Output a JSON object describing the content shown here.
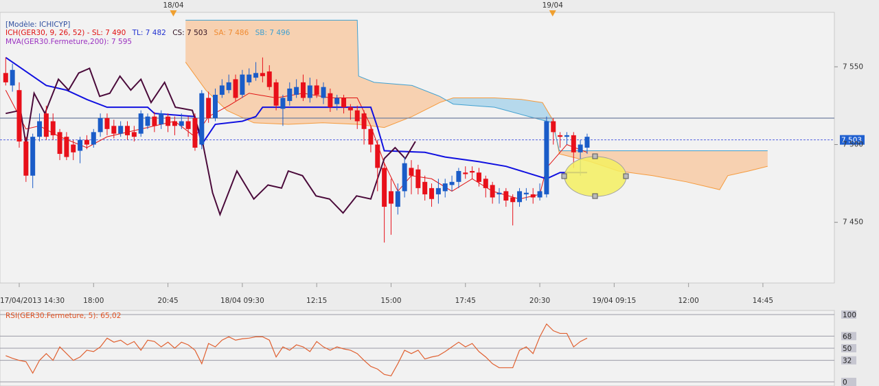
{
  "chart_data": [
    {
      "type": "candlestick",
      "legend": {
        "model": "[Modèle: ICHICYP]",
        "ich": "ICH(GER30, 9, 26, 52) -  SL: 7 490",
        "tl": "TL: 7 482",
        "cs": "CS: 7 503",
        "sa": "SA: 7 486",
        "sb": "SB: 7 496",
        "mva": "MVA(GER30.Fermeture,200): 7 595"
      },
      "categories": [
        null,
        null,
        "17/04/2013 14:30",
        null,
        null,
        null,
        null,
        null,
        null,
        null,
        null,
        null,
        null,
        "18:00",
        null,
        null,
        null,
        null,
        null,
        null,
        null,
        null,
        null,
        null,
        "20:45",
        null,
        null,
        null,
        null,
        null,
        null,
        null,
        null,
        null,
        null,
        "18/04 09:30",
        null,
        null,
        null,
        null,
        null,
        null,
        null,
        null,
        null,
        null,
        "12:15",
        null,
        null,
        null,
        null,
        null,
        null,
        null,
        null,
        null,
        null,
        "15:00",
        null,
        null,
        null,
        null,
        null,
        null,
        null,
        null,
        null,
        null,
        "17:45",
        null,
        null,
        null,
        null,
        null,
        null,
        null,
        null,
        null,
        null,
        "20:30",
        null,
        null,
        null,
        null,
        null,
        null,
        null,
        null,
        null,
        null,
        "19/04 09:15",
        null,
        null,
        null,
        null,
        null,
        null,
        null,
        null,
        null,
        null,
        "12:00",
        null,
        null,
        null,
        null,
        null,
        null,
        null,
        null,
        null,
        null,
        "14:45",
        null
      ],
      "open": [
        7546,
        7538,
        7535,
        7502,
        7480,
        7505,
        7520,
        7515,
        7508,
        7505,
        7500,
        7496,
        7503,
        7500,
        7508,
        7517,
        7512,
        7507,
        7512,
        7508,
        7507,
        7512,
        7518,
        7513,
        7518,
        7515,
        7512,
        7515,
        7517,
        7500,
        7530,
        7517,
        7532,
        7535,
        7542,
        7532,
        7540,
        7543,
        7546,
        7547,
        7540,
        7523,
        7528,
        7532,
        7540,
        7530,
        7538,
        7530,
        7533,
        7526,
        7530,
        7524,
        7522,
        7520,
        7510,
        7500,
        7485,
        7470,
        7460,
        7470,
        7485,
        7484,
        7476,
        7472,
        7468,
        7470,
        7474,
        7476,
        7482,
        7483,
        7482,
        7478,
        7474,
        7468,
        7470,
        7466,
        7463,
        7468,
        7468,
        7466,
        7468,
        7515,
        7506,
        7505,
        7506,
        7495,
        7498,
        null,
        null,
        null,
        null,
        null,
        null,
        null,
        null,
        null,
        null,
        null,
        null,
        null,
        null,
        null,
        null,
        null,
        null,
        null,
        null,
        null,
        null,
        null,
        null,
        null,
        null,
        null
      ],
      "high": [
        7556,
        7552,
        7540,
        7505,
        7507,
        7520,
        7525,
        7520,
        7510,
        7508,
        7503,
        7505,
        7506,
        7510,
        7520,
        7520,
        7516,
        7515,
        7515,
        7512,
        7522,
        7520,
        7521,
        7522,
        7520,
        7518,
        7520,
        7518,
        7520,
        7535,
        7534,
        7536,
        7542,
        7545,
        7545,
        7548,
        7549,
        7553,
        7556,
        7551,
        7542,
        7532,
        7540,
        7542,
        7545,
        7543,
        7542,
        7540,
        7536,
        7532,
        7532,
        7526,
        7525,
        7522,
        7512,
        7503,
        7488,
        7478,
        7475,
        7492,
        7490,
        7487,
        7480,
        7475,
        7478,
        7478,
        7480,
        7485,
        7486,
        7486,
        7485,
        7480,
        7476,
        7472,
        7472,
        7468,
        7472,
        7472,
        7472,
        7475,
        7518,
        7517,
        7508,
        7508,
        7508,
        7503,
        7507,
        null,
        null,
        null,
        null,
        null,
        null,
        null,
        null,
        null,
        null,
        null,
        null,
        null,
        null,
        null,
        null,
        null,
        null,
        null,
        null,
        null,
        null,
        null,
        null,
        null,
        null,
        null
      ],
      "low": [
        7538,
        7534,
        7498,
        7476,
        7472,
        7502,
        7503,
        7503,
        7490,
        7490,
        7490,
        7488,
        7497,
        7498,
        7505,
        7506,
        7504,
        7505,
        7503,
        7502,
        7505,
        7510,
        7508,
        7510,
        7508,
        7506,
        7510,
        7505,
        7496,
        7497,
        7514,
        7515,
        7530,
        7533,
        7528,
        7530,
        7538,
        7541,
        7540,
        7535,
        7522,
        7512,
        7525,
        7530,
        7528,
        7527,
        7530,
        7526,
        7521,
        7522,
        7520,
        7516,
        7510,
        7500,
        7495,
        7470,
        7437,
        7442,
        7455,
        7466,
        7468,
        7468,
        7464,
        7460,
        7462,
        7466,
        7470,
        7472,
        7478,
        7478,
        7473,
        7466,
        7462,
        7462,
        7460,
        7448,
        7460,
        7464,
        7462,
        7464,
        7466,
        7500,
        7498,
        7500,
        7485,
        7480,
        7494,
        null,
        null,
        null,
        null,
        null,
        null,
        null,
        null,
        null,
        null,
        null,
        null,
        null,
        null,
        null,
        null,
        null,
        null,
        null,
        null,
        null,
        null,
        null,
        null,
        null,
        null,
        null
      ],
      "close": [
        7540,
        7548,
        7502,
        7480,
        7505,
        7515,
        7505,
        7506,
        7494,
        7492,
        7495,
        7503,
        7500,
        7508,
        7517,
        7510,
        7507,
        7512,
        7506,
        7505,
        7520,
        7518,
        7512,
        7520,
        7512,
        7512,
        7515,
        7510,
        7498,
        7533,
        7517,
        7532,
        7538,
        7540,
        7530,
        7545,
        7545,
        7546,
        7544,
        7537,
        7525,
        7530,
        7536,
        7537,
        7530,
        7538,
        7532,
        7537,
        7524,
        7530,
        7524,
        7522,
        7515,
        7510,
        7500,
        7485,
        7460,
        7462,
        7470,
        7488,
        7480,
        7472,
        7468,
        7465,
        7472,
        7475,
        7476,
        7483,
        7481,
        7482,
        7476,
        7472,
        7466,
        7469,
        7464,
        7463,
        7470,
        7469,
        7466,
        7470,
        7515,
        7508,
        7505,
        7506,
        7495,
        7500,
        7505,
        null,
        null,
        null,
        null,
        null,
        null,
        null,
        null,
        null,
        null,
        null,
        null,
        null,
        null,
        null,
        null,
        null,
        null,
        null,
        null,
        null,
        null,
        null,
        null,
        null,
        null,
        null
      ],
      "up_color": "#1a5cc8",
      "down_color": "#e8101a",
      "ylim": [
        7411,
        7585
      ],
      "yticks": [
        {
          "value": 7450,
          "label": "7 450"
        },
        {
          "value": 7500,
          "label": "7 500"
        },
        {
          "value": 7550,
          "label": "7 550"
        }
      ],
      "cloud": {
        "bear_color": "#f8c8a0",
        "bull_color": "#a6d2ea"
      },
      "senkou_a": {
        "color": "#f59a3c",
        "x": [
          26.6,
          29.6,
          32.7,
          36.7,
          41.8,
          46.9,
          52.0,
          56.0,
          60.1,
          64.2,
          66.2,
          72.3,
          76.3,
          79.4,
          80.9,
          81.9,
          86.5,
          90.6,
          95.7,
          100.7,
          105.6,
          106.8,
          109.9,
          112.7
        ],
        "values": [
          7553,
          7535,
          7522,
          7514,
          7513,
          7514,
          7513,
          7511,
          7518,
          7527,
          7530,
          7530,
          7529,
          7527,
          7516,
          7494,
          7489,
          7483,
          7480,
          7476,
          7471,
          7480,
          7483,
          7486
        ]
      },
      "senkou_b": {
        "color": "#40a0d0",
        "x": [
          26.6,
          52.0,
          52.2,
          54.5,
          60.1,
          64.2,
          66.2,
          72.3,
          77.4,
          80.9,
          81.9,
          112.7
        ],
        "values": [
          7580,
          7580,
          7544,
          7540,
          7538,
          7531,
          7526,
          7524,
          7518,
          7514,
          7496,
          7496
        ]
      },
      "lines": [
        {
          "color": "#e01010",
          "width": 1,
          "x": [
            0,
            3,
            5,
            8,
            12,
            15,
            20,
            25,
            28,
            30,
            33,
            36,
            40,
            44,
            48,
            52,
            54,
            56,
            58,
            60,
            63,
            66,
            69,
            72,
            76,
            79,
            80,
            83,
            86
          ],
          "values": [
            7535,
            7510,
            7512,
            7505,
            7498,
            7505,
            7510,
            7515,
            7505,
            7518,
            7525,
            7533,
            7530,
            7533,
            7530,
            7530,
            7512,
            7488,
            7470,
            7480,
            7478,
            7470,
            7478,
            7470,
            7465,
            7468,
            7485,
            7500,
            7495
          ]
        },
        {
          "color": "#1010e0",
          "width": 2,
          "x": [
            0,
            6,
            9,
            12,
            15,
            21,
            22,
            28,
            29,
            31,
            35,
            37,
            38,
            54,
            55,
            56,
            62,
            65,
            70,
            74,
            80,
            82,
            86
          ],
          "values": [
            7556,
            7538,
            7535,
            7529,
            7524,
            7524,
            7520,
            7518,
            7500,
            7513,
            7515,
            7518,
            7524,
            7524,
            7511,
            7496,
            7495,
            7492,
            7489,
            7486,
            7478,
            7482,
            7482
          ]
        },
        {
          "color": "#4a0a3a",
          "width": 2,
          "x": [
            0,
            2.2,
            3.0,
            4.2,
            5.8,
            7.8,
            9.3,
            10.8,
            12.4,
            13.9,
            15.4,
            16.9,
            18.5,
            20.0,
            21.5,
            23.5,
            25.1,
            27.6,
            29.1,
            30.6,
            31.7,
            34.2,
            36.7,
            38.8,
            40.8,
            41.8,
            43.9,
            45.9,
            47.9,
            49.9,
            51.9,
            54.0,
            56.0,
            57.6,
            59.1,
            60.6
          ],
          "values": [
            7520,
            7522,
            7500,
            7533,
            7520,
            7542,
            7535,
            7546,
            7549,
            7531,
            7533,
            7544,
            7535,
            7542,
            7527,
            7540,
            7524,
            7522,
            7502,
            7469,
            7455,
            7483,
            7465,
            7474,
            7472,
            7483,
            7480,
            7467,
            7465,
            7456,
            7467,
            7465,
            7491,
            7498,
            7491,
            7502
          ]
        }
      ],
      "reference_line": {
        "value": 7517,
        "color": "#7080a0"
      },
      "last_price": {
        "value": 7503,
        "label": "7 503",
        "color": "#2060d0"
      },
      "day_markers": [
        {
          "label": "18/04",
          "x": 24.8
        },
        {
          "label": "19/04",
          "x": 80.9
        }
      ]
    },
    {
      "type": "line",
      "title": "RSI(GER30.Fermeture, 5): 65,02",
      "color": "#e06030",
      "values": [
        39,
        35,
        32,
        30,
        13,
        32,
        42,
        32,
        52,
        42,
        32,
        37,
        47,
        45,
        52,
        65,
        59,
        62,
        55,
        60,
        47,
        62,
        60,
        52,
        59,
        50,
        59,
        55,
        47,
        27,
        57,
        52,
        62,
        67,
        62,
        64,
        65,
        67,
        67,
        62,
        37,
        52,
        47,
        55,
        52,
        45,
        60,
        52,
        47,
        52,
        49,
        47,
        42,
        32,
        23,
        19,
        11,
        9,
        27,
        47,
        42,
        47,
        34,
        37,
        39,
        45,
        52,
        59,
        52,
        57,
        45,
        37,
        27,
        21,
        21,
        21,
        47,
        52,
        42,
        67,
        86,
        76,
        72,
        72,
        52,
        60,
        65
      ],
      "ylim": [
        0,
        100
      ],
      "yticks": [
        100,
        68,
        50,
        32,
        0
      ]
    }
  ]
}
